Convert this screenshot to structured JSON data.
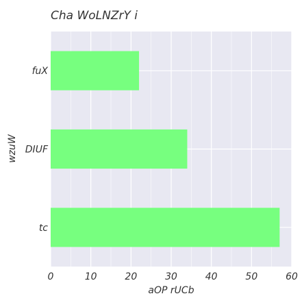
{
  "chart_data": {
    "type": "bar",
    "orientation": "horizontal",
    "title": "Cha WoLNZrY i",
    "xlabel": "aOP rUCb",
    "ylabel": "wzuW",
    "categories": [
      "fuX",
      "DIUF",
      "tc"
    ],
    "values": [
      22,
      34,
      57
    ],
    "xlim": [
      0,
      60
    ],
    "xticks": [
      "0",
      "10",
      "20",
      "30",
      "40",
      "50",
      "60"
    ],
    "grid": true,
    "legend": "none",
    "colors": {
      "bar": "#77ff7f",
      "panel": "#e8e8f2",
      "grid": "#ffffff"
    }
  }
}
